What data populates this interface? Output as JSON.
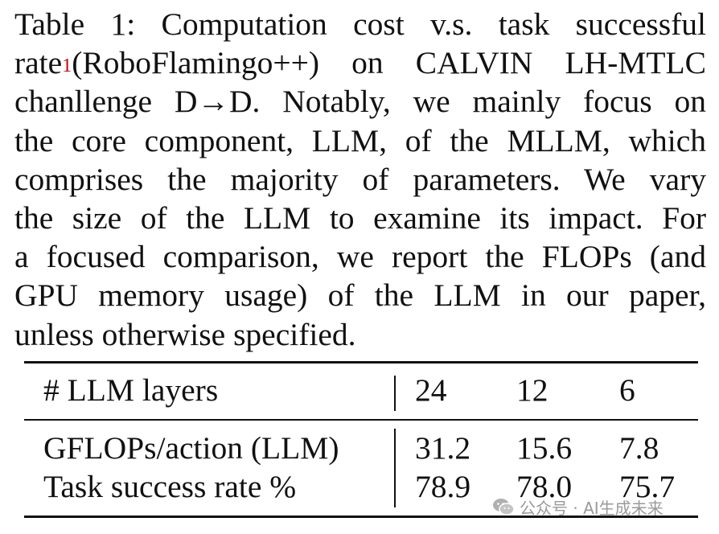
{
  "caption": {
    "lines": [
      "Table 1: Computation cost v.s. task successful",
      "(RoboFlamingo++) on CALVIN LH-MTLC",
      "chanllenge D→D. Notably, we mainly focus on",
      "the core component, LLM, of the MLLM, which",
      "comprises the majority of parameters. We vary",
      "the size of the LLM to examine its impact. For",
      "a focused comparison, we report the FLOPs (and",
      "GPU memory usage) of the LLM in our paper,",
      "unless otherwise specified."
    ],
    "line2_prefix": "rate",
    "footnote_mark": "1",
    "footnote_color": "#cc0000"
  },
  "table": {
    "header": {
      "label": "# LLM layers",
      "values": [
        "24",
        "12",
        "6"
      ]
    },
    "rows": [
      {
        "label": "GFLOPs/action (LLM)",
        "values": [
          "31.2",
          "15.6",
          "7.8"
        ]
      },
      {
        "label": "Task success rate %",
        "values": [
          "78.9",
          "78.0",
          "75.7"
        ]
      }
    ]
  },
  "watermark": {
    "text": "公众号 · AI生成未来",
    "icon": "wechat-icon"
  }
}
